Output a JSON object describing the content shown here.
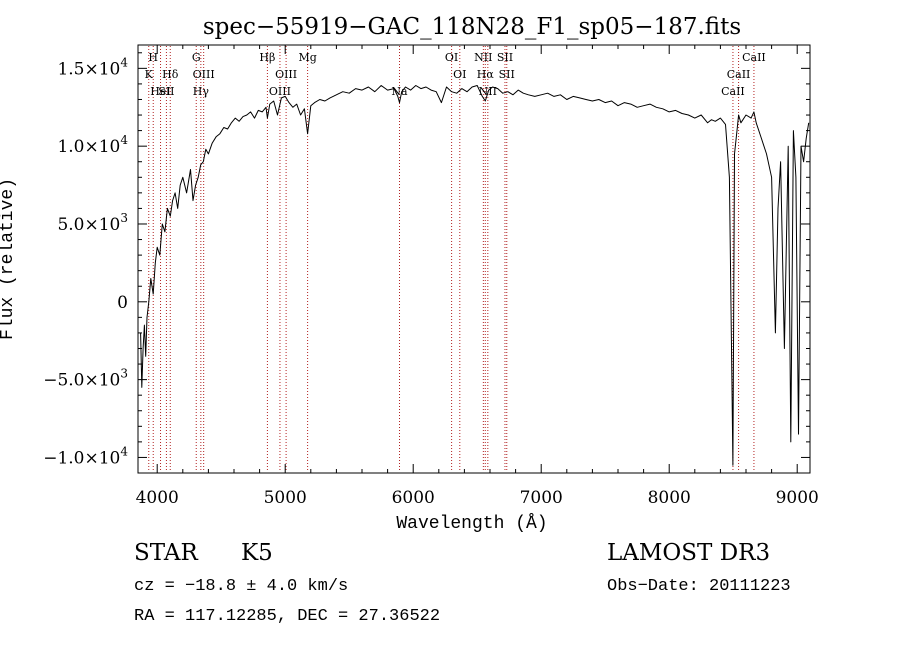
{
  "chart_data": {
    "type": "line",
    "title": "spec−55919−GAC_118N28_F1_sp05−187.fits",
    "xlabel": "Wavelength (Å)",
    "ylabel": "Flux (relative)",
    "xlim": [
      3850,
      9100
    ],
    "ylim": [
      -11000,
      16500
    ],
    "x_ticks": [
      {
        "value": 4000,
        "label": "4000"
      },
      {
        "value": 5000,
        "label": "5000"
      },
      {
        "value": 6000,
        "label": "6000"
      },
      {
        "value": 7000,
        "label": "7000"
      },
      {
        "value": 8000,
        "label": "8000"
      },
      {
        "value": 9000,
        "label": "9000"
      }
    ],
    "y_ticks": [
      {
        "value": 15000,
        "mant": "1.5",
        "exp": "4",
        "label": "1.5×10"
      },
      {
        "value": 10000,
        "mant": "1.0",
        "exp": "4",
        "label": "1.0×10"
      },
      {
        "value": 5000,
        "mant": "5.0",
        "exp": "3",
        "label": "5.0×10"
      },
      {
        "value": 0,
        "mant": "0",
        "exp": "",
        "label": "0"
      },
      {
        "value": -5000,
        "mant": "−5.0",
        "exp": "3",
        "label": "−5.0×10"
      },
      {
        "value": -10000,
        "mant": "−1.0",
        "exp": "4",
        "label": "−1.0×10"
      }
    ],
    "line_color": "#000000",
    "marker_color": "#b22222",
    "spectral_lines": [
      {
        "wavelength": 3934,
        "label": "K",
        "row": 1
      },
      {
        "wavelength": 3969,
        "label": "H",
        "row": 0
      },
      {
        "wavelength": 4026,
        "label": "HeI",
        "row": 2
      },
      {
        "wavelength": 4072,
        "label": "SII",
        "row": 2
      },
      {
        "wavelength": 4102,
        "label": "Hδ",
        "row": 1
      },
      {
        "wavelength": 4305,
        "label": "G",
        "row": 0
      },
      {
        "wavelength": 4341,
        "label": "Hγ",
        "row": 2
      },
      {
        "wavelength": 4363,
        "label": "OIII",
        "row": 1
      },
      {
        "wavelength": 4861,
        "label": "Hβ",
        "row": 0
      },
      {
        "wavelength": 4959,
        "label": "OIII",
        "row": 2
      },
      {
        "wavelength": 5007,
        "label": "OIII",
        "row": 1
      },
      {
        "wavelength": 5175,
        "label": "Mg",
        "row": 0
      },
      {
        "wavelength": 5893,
        "label": "Na",
        "row": 2
      },
      {
        "wavelength": 6300,
        "label": "OI",
        "row": 0
      },
      {
        "wavelength": 6364,
        "label": "OI",
        "row": 1
      },
      {
        "wavelength": 6548,
        "label": "NII",
        "row": 0
      },
      {
        "wavelength": 6563,
        "label": "Hα",
        "row": 1
      },
      {
        "wavelength": 6583,
        "label": "NII",
        "row": 2
      },
      {
        "wavelength": 6717,
        "label": "SII",
        "row": 0
      },
      {
        "wavelength": 6731,
        "label": "SII",
        "row": 1
      },
      {
        "wavelength": 8498,
        "label": "CaII",
        "row": 2
      },
      {
        "wavelength": 8542,
        "label": "CaII",
        "row": 1
      },
      {
        "wavelength": 8662,
        "label": "CaII",
        "row": 0
      }
    ],
    "series": [
      {
        "x": [
          3870,
          3880,
          3890,
          3900,
          3910,
          3920,
          3934,
          3950,
          3969,
          3985,
          4000,
          4020,
          4040,
          4060,
          4080,
          4102,
          4120,
          4140,
          4160,
          4180,
          4200,
          4230,
          4260,
          4280,
          4300,
          4320,
          4340,
          4360,
          4380,
          4400,
          4430,
          4460,
          4490,
          4520,
          4550,
          4580,
          4610,
          4640,
          4670,
          4700,
          4730,
          4760,
          4790,
          4820,
          4850,
          4861,
          4880,
          4910,
          4940,
          4970,
          5000,
          5030,
          5060,
          5090,
          5120,
          5150,
          5175,
          5200,
          5230,
          5270,
          5310,
          5350,
          5400,
          5450,
          5500,
          5550,
          5600,
          5650,
          5700,
          5750,
          5800,
          5850,
          5880,
          5893,
          5910,
          5940,
          5980,
          6020,
          6060,
          6100,
          6140,
          6180,
          6220,
          6260,
          6300,
          6340,
          6380,
          6420,
          6460,
          6500,
          6540,
          6563,
          6590,
          6620,
          6660,
          6700,
          6740,
          6780,
          6820,
          6860,
          6900,
          6950,
          7000,
          7050,
          7100,
          7150,
          7200,
          7250,
          7300,
          7350,
          7400,
          7450,
          7500,
          7550,
          7600,
          7650,
          7700,
          7750,
          7800,
          7850,
          7900,
          7950,
          8000,
          8050,
          8100,
          8150,
          8200,
          8250,
          8300,
          8330,
          8360,
          8400,
          8440,
          8470,
          8490,
          8498,
          8510,
          8530,
          8542,
          8560,
          8600,
          8640,
          8662,
          8680,
          8720,
          8760,
          8800,
          8830,
          8850,
          8870,
          8900,
          8930,
          8950,
          8970,
          8990,
          9010,
          9030,
          9050,
          9070,
          9090
        ],
        "y": [
          -2000,
          -5500,
          -3000,
          -1500,
          -3500,
          -1000,
          0,
          1500,
          500,
          2500,
          3500,
          3000,
          5000,
          4500,
          6000,
          5500,
          6500,
          7000,
          6000,
          7500,
          8000,
          7000,
          8500,
          6500,
          7500,
          8000,
          8800,
          9000,
          9800,
          9500,
          10200,
          10600,
          10800,
          11200,
          11100,
          11500,
          11800,
          11600,
          11900,
          12000,
          12200,
          11800,
          12300,
          12200,
          12500,
          11800,
          12700,
          12900,
          12000,
          13100,
          13200,
          12800,
          12500,
          12700,
          12000,
          12400,
          10800,
          12600,
          12800,
          13000,
          12900,
          13100,
          13300,
          13500,
          13400,
          13700,
          13600,
          13800,
          13500,
          13900,
          13600,
          13700,
          13200,
          12800,
          13500,
          13800,
          13600,
          13900,
          13700,
          13800,
          13600,
          13500,
          12800,
          13800,
          13500,
          13400,
          13700,
          13500,
          13800,
          13900,
          13200,
          12900,
          13600,
          13800,
          13700,
          13400,
          13500,
          13300,
          13600,
          13400,
          13300,
          13200,
          13300,
          13400,
          13200,
          13300,
          13000,
          13200,
          13100,
          13000,
          12900,
          13000,
          12800,
          12900,
          12600,
          12800,
          12700,
          12500,
          12600,
          12700,
          12500,
          12400,
          12200,
          12300,
          12100,
          12000,
          11800,
          12000,
          11500,
          11700,
          11600,
          11800,
          11400,
          8000,
          -5000,
          -10500,
          9500,
          11000,
          12000,
          11500,
          12000,
          11800,
          12200,
          11500,
          10500,
          9500,
          8000,
          -2000,
          6000,
          9000,
          -3000,
          10000,
          -9000,
          11000,
          8000,
          -8500,
          10000,
          9000,
          10500,
          11500
        ]
      }
    ],
    "annotations": {
      "object_class": "STAR",
      "subclass": "K5",
      "survey": "LAMOST DR3",
      "redshift": "cz = −18.8 ± 4.0 km/s",
      "obs_date": "Obs−Date: 20111223",
      "coords": "RA = 117.12285, DEC =  27.36522"
    }
  }
}
